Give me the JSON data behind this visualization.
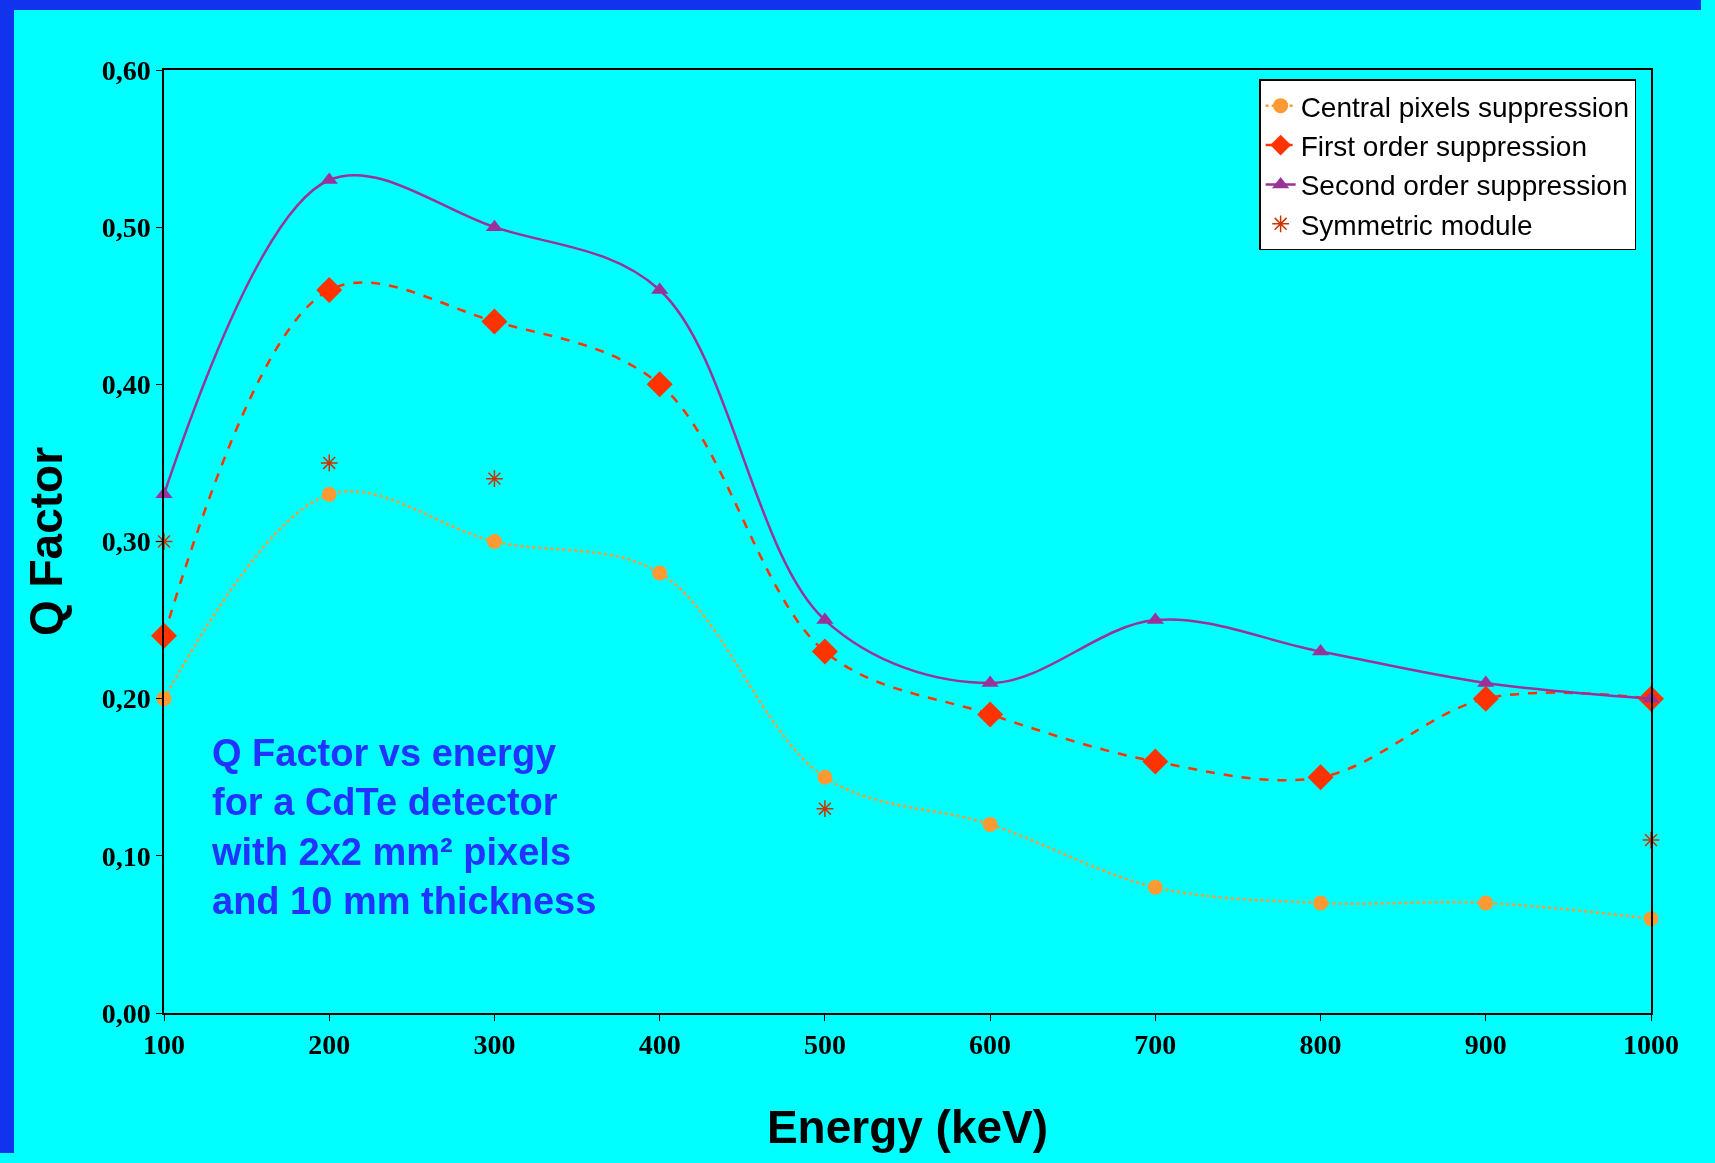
{
  "chart_data": {
    "type": "line",
    "xlabel": "Energy (keV)",
    "ylabel": "Q Factor",
    "x": [
      100,
      200,
      300,
      400,
      500,
      600,
      700,
      800,
      900,
      1000
    ],
    "series": [
      {
        "name": "Central pixels suppression",
        "color": "#ff9933",
        "marker": "circle",
        "line_style": "dotted",
        "values": [
          0.2,
          0.33,
          0.3,
          0.28,
          0.15,
          0.12,
          0.08,
          0.07,
          0.07,
          0.06
        ]
      },
      {
        "name": "First order suppression",
        "color": "#ff3300",
        "marker": "diamond",
        "line_style": "dashed",
        "values": [
          0.24,
          0.46,
          0.44,
          0.4,
          0.23,
          0.19,
          0.16,
          0.15,
          0.2,
          0.2
        ]
      },
      {
        "name": "Second order suppression",
        "color": "#993399",
        "marker": "triangle",
        "line_style": "solid",
        "values": [
          0.33,
          0.53,
          0.5,
          0.46,
          0.25,
          0.21,
          0.25,
          0.23,
          0.21,
          0.2
        ]
      },
      {
        "name": "Symmetric module",
        "type": "scatter",
        "color": "#cc3300",
        "marker": "cross",
        "x": [
          100,
          200,
          300,
          500,
          1000
        ],
        "values": [
          0.3,
          0.35,
          0.34,
          0.13,
          0.11
        ]
      }
    ],
    "xlim": [
      100,
      1000
    ],
    "xticks": [
      100,
      200,
      300,
      400,
      500,
      600,
      700,
      800,
      900,
      1000
    ],
    "ylim": [
      0,
      0.6
    ],
    "yticks": [
      {
        "value": 0,
        "label": "0,00"
      },
      {
        "value": 0.1,
        "label": "0,10"
      },
      {
        "value": 0.2,
        "label": "0,20"
      },
      {
        "value": 0.3,
        "label": "0,30"
      },
      {
        "value": 0.4,
        "label": "0,40"
      },
      {
        "value": 0.5,
        "label": "0,50"
      },
      {
        "value": 0.6,
        "label": "0,60"
      }
    ],
    "grid": false,
    "legend": "top right",
    "annotations": [
      {
        "text": "Q Factor vs energy\nfor a CdTe detector\nwith 2x2 mm² pixels\nand 10 mm thickness"
      }
    ]
  }
}
